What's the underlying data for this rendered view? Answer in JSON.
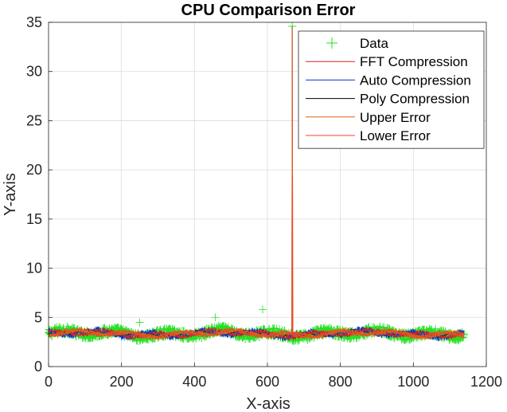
{
  "chart_data": {
    "type": "line",
    "title": "CPU Comparison Error",
    "xlabel": "X-axis",
    "ylabel": "Y-axis",
    "xlim": [
      0,
      1200
    ],
    "ylim": [
      0,
      35
    ],
    "xticks": [
      0,
      200,
      400,
      600,
      800,
      1000,
      1200
    ],
    "yticks": [
      0,
      5,
      10,
      15,
      20,
      25,
      30,
      35
    ],
    "grid": true,
    "legend_position": "top-right",
    "n_points": 1140,
    "baseline_mean": 3.35,
    "series": [
      {
        "name": "Data",
        "style": "marker",
        "marker": "+",
        "color": "#22e022",
        "noise": 0.42,
        "spikes": [
          {
            "x": 250,
            "y": 4.5
          },
          {
            "x": 457,
            "y": 5.0
          },
          {
            "x": 587,
            "y": 5.8
          },
          {
            "x": 668,
            "y": 34.6
          }
        ]
      },
      {
        "name": "FFT Compression",
        "style": "line",
        "color": "#e02020",
        "noise": 0.22,
        "spikes": [
          {
            "x": 668,
            "y": 34.6
          }
        ]
      },
      {
        "name": "Auto Compression",
        "style": "line",
        "color": "#1030d0",
        "noise": 0.35,
        "spikes": [
          {
            "x": 668,
            "y": 34.6
          }
        ]
      },
      {
        "name": "Poly Compression",
        "style": "line",
        "color": "#000000",
        "noise": 0.05,
        "spikes": []
      },
      {
        "name": "Upper Error",
        "style": "line",
        "color": "#e06010",
        "noise": 0.2,
        "spikes": [
          {
            "x": 668,
            "y": 34.6
          }
        ]
      },
      {
        "name": "Lower Error",
        "style": "line",
        "color": "#f04828",
        "noise": 0.2,
        "spikes": [
          {
            "x": 669,
            "y": 19.4
          }
        ]
      }
    ]
  }
}
